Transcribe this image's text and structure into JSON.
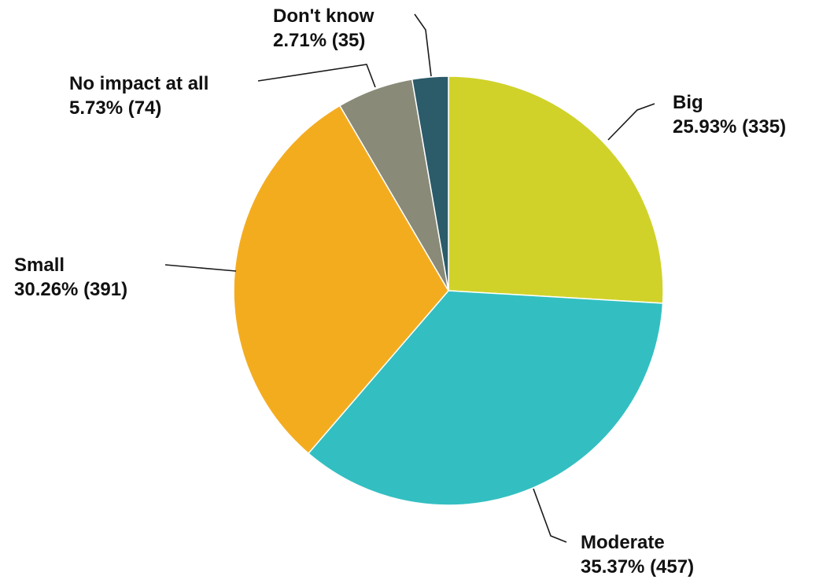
{
  "chart_data": {
    "type": "pie",
    "title": "",
    "slices": [
      {
        "label": "Big",
        "percent_text": "25.93% (335)",
        "percent": 25.93,
        "count": 335,
        "color": "#d0d22a"
      },
      {
        "label": "Moderate",
        "percent_text": "35.37% (457)",
        "percent": 35.37,
        "count": 457,
        "color": "#33bfc1"
      },
      {
        "label": "Small",
        "percent_text": "30.26% (391)",
        "percent": 30.26,
        "count": 391,
        "color": "#f4ac1f"
      },
      {
        "label": "No impact at all",
        "percent_text": "5.73% (74)",
        "percent": 5.73,
        "count": 74,
        "color": "#8a8a78"
      },
      {
        "label": "Don't know",
        "percent_text": "2.71% (35)",
        "percent": 2.71,
        "count": 35,
        "color": "#2c5b6a"
      }
    ],
    "start_angle_deg": 0,
    "direction": "clockwise"
  }
}
